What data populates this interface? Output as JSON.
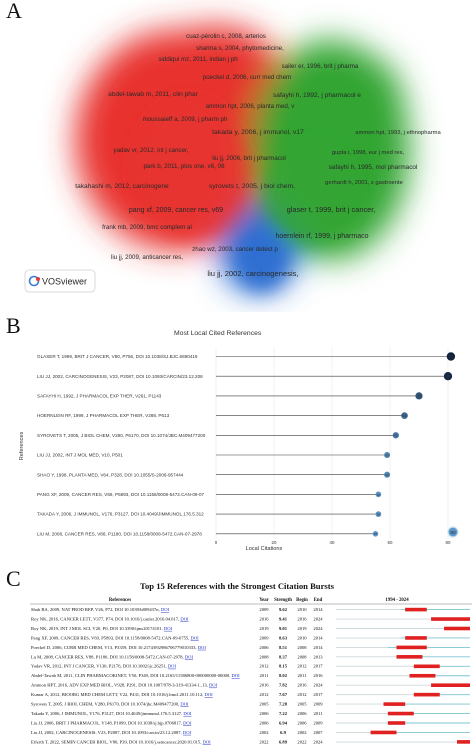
{
  "panels": {
    "a": "A",
    "b": "B",
    "c": "C"
  },
  "vosviewer": {
    "logo_text": "VOSviewer",
    "nodes": [
      {
        "label": "cuaz-pérolin c, 2008, arterios",
        "cluster": "red"
      },
      {
        "label": "sharma s, 2004, phytomedicine,",
        "cluster": "red"
      },
      {
        "label": "siddiqui mz, 2011, indian j ph",
        "cluster": "red"
      },
      {
        "label": "sailer er, 1996, brit j pharma",
        "cluster": "green"
      },
      {
        "label": "poeckel d, 2006, curr med chem",
        "cluster": "red"
      },
      {
        "label": "abdel-tawab m, 2011, clin phar",
        "cluster": "red"
      },
      {
        "label": "safayhi h, 1992, j pharmacol e",
        "cluster": "green"
      },
      {
        "label": "ammon hpt, 2006, planta med, v",
        "cluster": "red"
      },
      {
        "label": "moussaieff a, 2009, j pharm ph",
        "cluster": "red"
      },
      {
        "label": "takada y, 2006, j immunol, v17",
        "cluster": "red"
      },
      {
        "label": "ammon hpt, 1993, j ethnopharma",
        "cluster": "green"
      },
      {
        "label": "yadav vr, 2012, int j cancer,",
        "cluster": "red"
      },
      {
        "label": "liu jj, 2006, brit j pharmacol",
        "cluster": "red"
      },
      {
        "label": "gupta i, 1998, eur j med res,",
        "cluster": "green"
      },
      {
        "label": "park b, 2011, plos one, v6, 06",
        "cluster": "red"
      },
      {
        "label": "safayhi h, 1995, mol pharmacol",
        "cluster": "green"
      },
      {
        "label": "gerhardt h, 2001, z gastroente",
        "cluster": "green"
      },
      {
        "label": "takahashi m, 2012, carcinogene",
        "cluster": "red"
      },
      {
        "label": "syrovets t, 2005, j biol chem,",
        "cluster": "red"
      },
      {
        "label": "pang xf, 2009, cancer res, v69",
        "cluster": "red"
      },
      {
        "label": "glaser t, 1999, brit j cancer,",
        "cluster": "green"
      },
      {
        "label": "frank mb, 2009, bmc complem al",
        "cluster": "red"
      },
      {
        "label": "hoernlein rf, 1999, j pharmaco",
        "cluster": "green"
      },
      {
        "label": "zhao wz, 2003, cancer detect p",
        "cluster": "blue"
      },
      {
        "label": "liu jj, 2009, anticancer res,",
        "cluster": "red"
      },
      {
        "label": "liu jj, 2002, carcinogenesis,",
        "cluster": "blue"
      }
    ]
  },
  "chart_data": [
    {
      "type": "lollipop",
      "title": "Most Local Cited References",
      "xlabel": "Local Citations",
      "ylabel": "References",
      "xlim": [
        0,
        80
      ],
      "xticks": [
        0,
        20,
        40,
        60,
        80
      ],
      "legend_value": "80",
      "categories": [
        "GLASER T, 1999, BRIT J CANCER, V80, P756, DOI 10.1038/SJ.BJC.6690419",
        "LIU JJ, 2002, CARCINOGENESIS, V23, P2087, DOI 10.1093/CARCIN/23.12.208",
        "SAFAYHI H, 1992, J PHARMACOL EXP THER, V261, P1143",
        "HOERNLEIN RF, 1999, J PHARMACOL EXP THER, V288, P613",
        "SYROVETS T, 2005, J BIOL CHEM, V280, P6170, DOI 10.1074/JBC.M409477200",
        "LIU JJ, 2002, INT J MOL MED, V10, P501",
        "SHAO Y, 1998, PLANTA MED, V64, P328, DOI 10.1055/S-2006-957444",
        "PANG XF, 2009, CANCER RES, V69, P5893, DOI 10.1158/0008-5472.CAN-09-07",
        "TAKADA Y, 2006, J IMMUNOL, V176, P3127, DOI 10.4049/JIMMUNOL.176.5.312",
        "LIU M, 2008, CANCER RES, V88, P1180, DOI 10.1158/0008-5472.CAN-07-2978"
      ],
      "values": [
        81,
        80,
        70,
        65,
        62,
        59,
        59,
        56,
        56,
        55
      ]
    },
    {
      "type": "table",
      "title": "Top 15 References with the Strongest Citation Bursts",
      "columns": [
        "References",
        "Year",
        "Strength",
        "Begin",
        "End",
        "1994 - 2024"
      ],
      "range": [
        1994,
        2024
      ],
      "rows": [
        {
          "ref": "Shah BA, 2009, NAT PROD REP, V26, P72, DOI 10.1039/b809437n,",
          "doi": "DOI",
          "year": "2009",
          "strength": "9.62",
          "begin": "2010",
          "end": "2014"
        },
        {
          "ref": "Roy NK, 2016, CANCER LETT, V377, P74, DOI 10.1016/j.canlet.2016.04.017,",
          "doi": "DOI",
          "year": "2016",
          "strength": "9.41",
          "begin": "2016",
          "end": "2024"
        },
        {
          "ref": "Roy NK, 2019, INT J MOL SCI, V20, P0, DOI 10.3390/ijms20174101,",
          "doi": "DOI",
          "year": "2019",
          "strength": "9.01",
          "begin": "2019",
          "end": "2024"
        },
        {
          "ref": "Pang XF, 2009, CANCER RES, V69, P5893, DOI 10.1158/0008-5472.CAN-09-0755,",
          "doi": "DOI",
          "year": "2009",
          "strength": "8.63",
          "begin": "2010",
          "end": "2014"
        },
        {
          "ref": "Poeckel D, 2006, CURR MED CHEM, V13, P3359, DOI 10.2174/092986706779010333,",
          "doi": "DOI",
          "year": "2006",
          "strength": "8.51",
          "begin": "2008",
          "end": "2014"
        },
        {
          "ref": "Lu M, 2008, CANCER RES, V88, P1180, DOI 10.1158/0008-5472.CAN-07-2978,",
          "doi": "DOI",
          "year": "2008",
          "strength": "8.37",
          "begin": "2008",
          "end": "2013"
        },
        {
          "ref": "Yadav VR, 2012, INT J CANCER, V130, P2176, DOI 10.1002/ijc.26251,",
          "doi": "DOI",
          "year": "2012",
          "strength": "8.15",
          "begin": "2012",
          "end": "2017"
        },
        {
          "ref": "Abdel-Tawab M, 2011, CLIN PHARMACOKINET, V50, P349, DOI 10.2165/11586800-000000000-00000,",
          "doi": "DOI",
          "year": "2011",
          "strength": "8.02",
          "begin": "2011",
          "end": "2016"
        },
        {
          "ref": "Ammon HPT, 2016, ADV EXP MED BIOL, V928, P291, DOI 10.1007/978-3-319-41334-1_13,",
          "doi": "DOI",
          "year": "2016",
          "strength": "7.82",
          "begin": "2016",
          "end": "2024"
        },
        {
          "ref": "Kumar A, 2012, BIOORG MED CHEM LETT, V22, P431, DOI 10.1016/j.bmcl.2011.10.112,",
          "doi": "DOI",
          "year": "2012",
          "strength": "7.67",
          "begin": "2012",
          "end": "2017"
        },
        {
          "ref": "Syrovets T, 2005, J BIOL CHEM, V280, P6170, DOI 10.1074/jbc.M409477200,",
          "doi": "DOI",
          "year": "2005",
          "strength": "7.28",
          "begin": "2005",
          "end": "2009"
        },
        {
          "ref": "Takada Y, 2006, J IMMUNOL, V176, P3127, DOI 10.4049/jimmunol.176.5.3127,",
          "doi": "DOI",
          "year": "2006",
          "strength": "7.22",
          "begin": "2006",
          "end": "2011"
        },
        {
          "ref": "Liu JJ, 2006, BRIT J PHARMACOL, V148, P1099, DOI 10.1038/sj.bjp.0706817,",
          "doi": "DOI",
          "year": "2006",
          "strength": "6.94",
          "begin": "2006",
          "end": "2009"
        },
        {
          "ref": "Liu JJ, 2002, CARCINOGENESIS, V23, P2087, DOI 10.1093/carcin/23.12.2087,",
          "doi": "DOI",
          "year": "2002",
          "strength": "6.9",
          "begin": "2002",
          "end": "2007"
        },
        {
          "ref": "Efferth T, 2022, SEMIN CANCER BIOL, V80, P39, DOI 10.1016/j.semcancer.2020.01.015,",
          "doi": "DOI",
          "year": "2022",
          "strength": "6.89",
          "begin": "2022",
          "end": "2024"
        }
      ]
    }
  ],
  "colors": {
    "red": "#e8322e",
    "green": "#33a532",
    "blue": "#2f6fd1",
    "lollipop_line": "#3a3a3a",
    "bubble_dark": "#13233d",
    "bubble_light": "#5b97c9",
    "burst": "#e02121",
    "burst_base": "#7ec4cf"
  }
}
